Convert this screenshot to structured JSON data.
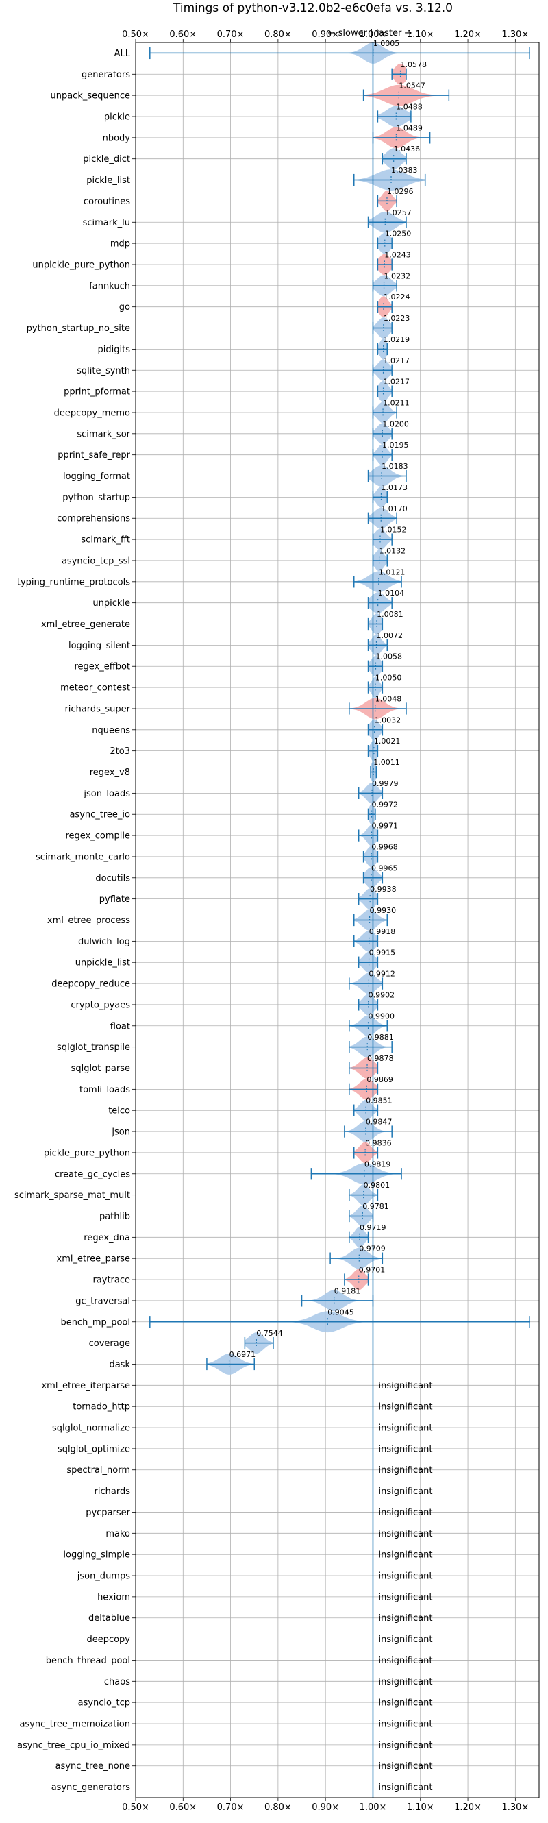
{
  "chart_data": {
    "type": "violin",
    "title": "Timings of python-v3.12.0b2-e6c0efa vs. 3.12.0",
    "subtitle": "← slower | faster →",
    "xlim": [
      0.5,
      1.35
    ],
    "x_ticks": [
      0.5,
      0.6,
      0.7,
      0.8,
      0.9,
      1.0,
      1.1,
      1.2,
      1.3
    ],
    "x_tick_labels": [
      "0.50×",
      "0.60×",
      "0.70×",
      "0.80×",
      "0.90×",
      "1.00×",
      "1.10×",
      "1.20×",
      "1.30×"
    ],
    "reference_line": 1.0,
    "grid": true,
    "colors": {
      "default": "#a7c7e7",
      "significant": "#f4a6a6",
      "line": "#1f77b4"
    },
    "insignificant_label": "insignificant",
    "benchmarks": [
      {
        "name": "ALL",
        "value": 1.0005,
        "label": "1.0005",
        "min": 0.53,
        "max": 1.33,
        "w": 0.02,
        "sig": false
      },
      {
        "name": "generators",
        "value": 1.0578,
        "label": "1.0578",
        "min": 1.04,
        "max": 1.07,
        "w": 0.012,
        "sig": true
      },
      {
        "name": "unpack_sequence",
        "value": 1.0547,
        "label": "1.0547",
        "min": 0.98,
        "max": 1.16,
        "w": 0.03,
        "sig": true
      },
      {
        "name": "pickle",
        "value": 1.0488,
        "label": "1.0488",
        "min": 1.01,
        "max": 1.08,
        "w": 0.02,
        "sig": false
      },
      {
        "name": "nbody",
        "value": 1.0489,
        "label": "1.0489",
        "min": 1.0,
        "max": 1.12,
        "w": 0.02,
        "sig": true
      },
      {
        "name": "pickle_dict",
        "value": 1.0436,
        "label": "1.0436",
        "min": 1.02,
        "max": 1.07,
        "w": 0.015,
        "sig": false
      },
      {
        "name": "pickle_list",
        "value": 1.0383,
        "label": "1.0383",
        "min": 0.96,
        "max": 1.11,
        "w": 0.03,
        "sig": false
      },
      {
        "name": "coroutines",
        "value": 1.0296,
        "label": "1.0296",
        "min": 1.01,
        "max": 1.05,
        "w": 0.01,
        "sig": true
      },
      {
        "name": "scimark_lu",
        "value": 1.0257,
        "label": "1.0257",
        "min": 0.99,
        "max": 1.07,
        "w": 0.02,
        "sig": false
      },
      {
        "name": "mdp",
        "value": 1.025,
        "label": "1.0250",
        "min": 1.01,
        "max": 1.04,
        "w": 0.012,
        "sig": false
      },
      {
        "name": "unpickle_pure_python",
        "value": 1.0243,
        "label": "1.0243",
        "min": 1.01,
        "max": 1.04,
        "w": 0.012,
        "sig": true
      },
      {
        "name": "fannkuch",
        "value": 1.0232,
        "label": "1.0232",
        "min": 1.0,
        "max": 1.05,
        "w": 0.015,
        "sig": false
      },
      {
        "name": "go",
        "value": 1.0224,
        "label": "1.0224",
        "min": 1.01,
        "max": 1.04,
        "w": 0.01,
        "sig": true
      },
      {
        "name": "python_startup_no_site",
        "value": 1.0223,
        "label": "1.0223",
        "min": 1.0,
        "max": 1.04,
        "w": 0.012,
        "sig": false
      },
      {
        "name": "pidigits",
        "value": 1.0219,
        "label": "1.0219",
        "min": 1.01,
        "max": 1.03,
        "w": 0.008,
        "sig": false
      },
      {
        "name": "sqlite_synth",
        "value": 1.0217,
        "label": "1.0217",
        "min": 1.0,
        "max": 1.04,
        "w": 0.012,
        "sig": false
      },
      {
        "name": "pprint_pformat",
        "value": 1.0217,
        "label": "1.0217",
        "min": 1.01,
        "max": 1.04,
        "w": 0.01,
        "sig": false
      },
      {
        "name": "deepcopy_memo",
        "value": 1.0211,
        "label": "1.0211",
        "min": 1.0,
        "max": 1.05,
        "w": 0.012,
        "sig": false
      },
      {
        "name": "scimark_sor",
        "value": 1.02,
        "label": "1.0200",
        "min": 1.0,
        "max": 1.04,
        "w": 0.012,
        "sig": false
      },
      {
        "name": "pprint_safe_repr",
        "value": 1.0195,
        "label": "1.0195",
        "min": 1.0,
        "max": 1.04,
        "w": 0.01,
        "sig": false
      },
      {
        "name": "logging_format",
        "value": 1.0183,
        "label": "1.0183",
        "min": 0.99,
        "max": 1.07,
        "w": 0.018,
        "sig": false
      },
      {
        "name": "python_startup",
        "value": 1.0173,
        "label": "1.0173",
        "min": 1.0,
        "max": 1.03,
        "w": 0.01,
        "sig": false
      },
      {
        "name": "comprehensions",
        "value": 1.017,
        "label": "1.0170",
        "min": 0.99,
        "max": 1.05,
        "w": 0.015,
        "sig": false
      },
      {
        "name": "scimark_fft",
        "value": 1.0152,
        "label": "1.0152",
        "min": 1.0,
        "max": 1.04,
        "w": 0.012,
        "sig": false
      },
      {
        "name": "asyncio_tcp_ssl",
        "value": 1.0132,
        "label": "1.0132",
        "min": 1.0,
        "max": 1.03,
        "w": 0.01,
        "sig": false
      },
      {
        "name": "typing_runtime_protocols",
        "value": 1.0121,
        "label": "1.0121",
        "min": 0.96,
        "max": 1.06,
        "w": 0.02,
        "sig": false
      },
      {
        "name": "unpickle",
        "value": 1.0104,
        "label": "1.0104",
        "min": 0.99,
        "max": 1.04,
        "w": 0.015,
        "sig": false
      },
      {
        "name": "xml_etree_generate",
        "value": 1.0081,
        "label": "1.0081",
        "min": 0.99,
        "max": 1.02,
        "w": 0.01,
        "sig": false
      },
      {
        "name": "logging_silent",
        "value": 1.0072,
        "label": "1.0072",
        "min": 0.99,
        "max": 1.03,
        "w": 0.01,
        "sig": false
      },
      {
        "name": "regex_effbot",
        "value": 1.0058,
        "label": "1.0058",
        "min": 0.99,
        "max": 1.02,
        "w": 0.01,
        "sig": false
      },
      {
        "name": "meteor_contest",
        "value": 1.005,
        "label": "1.0050",
        "min": 0.99,
        "max": 1.02,
        "w": 0.008,
        "sig": false
      },
      {
        "name": "richards_super",
        "value": 1.0048,
        "label": "1.0048",
        "min": 0.95,
        "max": 1.07,
        "w": 0.02,
        "sig": true
      },
      {
        "name": "nqueens",
        "value": 1.0032,
        "label": "1.0032",
        "min": 0.99,
        "max": 1.02,
        "w": 0.01,
        "sig": false
      },
      {
        "name": "2to3",
        "value": 1.0021,
        "label": "1.0021",
        "min": 0.99,
        "max": 1.01,
        "w": 0.008,
        "sig": false
      },
      {
        "name": "regex_v8",
        "value": 1.0011,
        "label": "1.0011",
        "min": 0.995,
        "max": 1.007,
        "w": 0.006,
        "sig": false
      },
      {
        "name": "json_loads",
        "value": 0.9979,
        "label": "0.9979",
        "min": 0.97,
        "max": 1.02,
        "w": 0.012,
        "sig": false
      },
      {
        "name": "async_tree_io",
        "value": 0.9972,
        "label": "0.9972",
        "min": 0.99,
        "max": 1.005,
        "w": 0.006,
        "sig": false
      },
      {
        "name": "regex_compile",
        "value": 0.9971,
        "label": "0.9971",
        "min": 0.97,
        "max": 1.01,
        "w": 0.01,
        "sig": false
      },
      {
        "name": "scimark_monte_carlo",
        "value": 0.9968,
        "label": "0.9968",
        "min": 0.98,
        "max": 1.01,
        "w": 0.01,
        "sig": false
      },
      {
        "name": "docutils",
        "value": 0.9965,
        "label": "0.9965",
        "min": 0.98,
        "max": 1.02,
        "w": 0.012,
        "sig": false
      },
      {
        "name": "pyflate",
        "value": 0.9938,
        "label": "0.9938",
        "min": 0.97,
        "max": 1.01,
        "w": 0.012,
        "sig": false
      },
      {
        "name": "xml_etree_process",
        "value": 0.993,
        "label": "0.9930",
        "min": 0.96,
        "max": 1.03,
        "w": 0.015,
        "sig": false
      },
      {
        "name": "dulwich_log",
        "value": 0.9918,
        "label": "0.9918",
        "min": 0.96,
        "max": 1.01,
        "w": 0.014,
        "sig": false
      },
      {
        "name": "unpickle_list",
        "value": 0.9915,
        "label": "0.9915",
        "min": 0.97,
        "max": 1.01,
        "w": 0.012,
        "sig": false
      },
      {
        "name": "deepcopy_reduce",
        "value": 0.9912,
        "label": "0.9912",
        "min": 0.95,
        "max": 1.02,
        "w": 0.015,
        "sig": false
      },
      {
        "name": "crypto_pyaes",
        "value": 0.9902,
        "label": "0.9902",
        "min": 0.97,
        "max": 1.01,
        "w": 0.012,
        "sig": false
      },
      {
        "name": "float",
        "value": 0.99,
        "label": "0.9900",
        "min": 0.95,
        "max": 1.03,
        "w": 0.015,
        "sig": false
      },
      {
        "name": "sqlglot_transpile",
        "value": 0.9881,
        "label": "0.9881",
        "min": 0.95,
        "max": 1.04,
        "w": 0.016,
        "sig": false
      },
      {
        "name": "sqlglot_parse",
        "value": 0.9878,
        "label": "0.9878",
        "min": 0.95,
        "max": 1.01,
        "w": 0.015,
        "sig": true
      },
      {
        "name": "tomli_loads",
        "value": 0.9869,
        "label": "0.9869",
        "min": 0.95,
        "max": 1.01,
        "w": 0.015,
        "sig": true
      },
      {
        "name": "telco",
        "value": 0.9851,
        "label": "0.9851",
        "min": 0.96,
        "max": 1.01,
        "w": 0.012,
        "sig": false
      },
      {
        "name": "json",
        "value": 0.9847,
        "label": "0.9847",
        "min": 0.94,
        "max": 1.04,
        "w": 0.016,
        "sig": false
      },
      {
        "name": "pickle_pure_python",
        "value": 0.9836,
        "label": "0.9836",
        "min": 0.96,
        "max": 1.01,
        "w": 0.012,
        "sig": true
      },
      {
        "name": "create_gc_cycles",
        "value": 0.9819,
        "label": "0.9819",
        "min": 0.87,
        "max": 1.06,
        "w": 0.025,
        "sig": false
      },
      {
        "name": "scimark_sparse_mat_mult",
        "value": 0.9801,
        "label": "0.9801",
        "min": 0.95,
        "max": 1.01,
        "w": 0.012,
        "sig": false
      },
      {
        "name": "pathlib",
        "value": 0.9781,
        "label": "0.9781",
        "min": 0.95,
        "max": 1.0,
        "w": 0.012,
        "sig": false
      },
      {
        "name": "regex_dna",
        "value": 0.9719,
        "label": "0.9719",
        "min": 0.95,
        "max": 0.99,
        "w": 0.01,
        "sig": false
      },
      {
        "name": "xml_etree_parse",
        "value": 0.9709,
        "label": "0.9709",
        "min": 0.91,
        "max": 1.02,
        "w": 0.018,
        "sig": false
      },
      {
        "name": "raytrace",
        "value": 0.9701,
        "label": "0.9701",
        "min": 0.94,
        "max": 0.99,
        "w": 0.012,
        "sig": true
      },
      {
        "name": "gc_traversal",
        "value": 0.9181,
        "label": "0.9181",
        "min": 0.85,
        "max": 1.0,
        "w": 0.02,
        "sig": false
      },
      {
        "name": "bench_mp_pool",
        "value": 0.9045,
        "label": "0.9045",
        "min": 0.53,
        "max": 1.33,
        "w": 0.03,
        "sig": false
      },
      {
        "name": "coverage",
        "value": 0.7544,
        "label": "0.7544",
        "min": 0.73,
        "max": 0.79,
        "w": 0.015,
        "sig": false
      },
      {
        "name": "dask",
        "value": 0.6971,
        "label": "0.6971",
        "min": 0.65,
        "max": 0.75,
        "w": 0.02,
        "sig": false
      },
      {
        "name": "xml_etree_iterparse",
        "insignificant": true
      },
      {
        "name": "tornado_http",
        "insignificant": true
      },
      {
        "name": "sqlglot_normalize",
        "insignificant": true
      },
      {
        "name": "sqlglot_optimize",
        "insignificant": true
      },
      {
        "name": "spectral_norm",
        "insignificant": true
      },
      {
        "name": "richards",
        "insignificant": true
      },
      {
        "name": "pycparser",
        "insignificant": true
      },
      {
        "name": "mako",
        "insignificant": true
      },
      {
        "name": "logging_simple",
        "insignificant": true
      },
      {
        "name": "json_dumps",
        "insignificant": true
      },
      {
        "name": "hexiom",
        "insignificant": true
      },
      {
        "name": "deltablue",
        "insignificant": true
      },
      {
        "name": "deepcopy",
        "insignificant": true
      },
      {
        "name": "bench_thread_pool",
        "insignificant": true
      },
      {
        "name": "chaos",
        "insignificant": true
      },
      {
        "name": "asyncio_tcp",
        "insignificant": true
      },
      {
        "name": "async_tree_memoization",
        "insignificant": true
      },
      {
        "name": "async_tree_cpu_io_mixed",
        "insignificant": true
      },
      {
        "name": "async_tree_none",
        "insignificant": true
      },
      {
        "name": "async_generators",
        "insignificant": true
      }
    ]
  }
}
